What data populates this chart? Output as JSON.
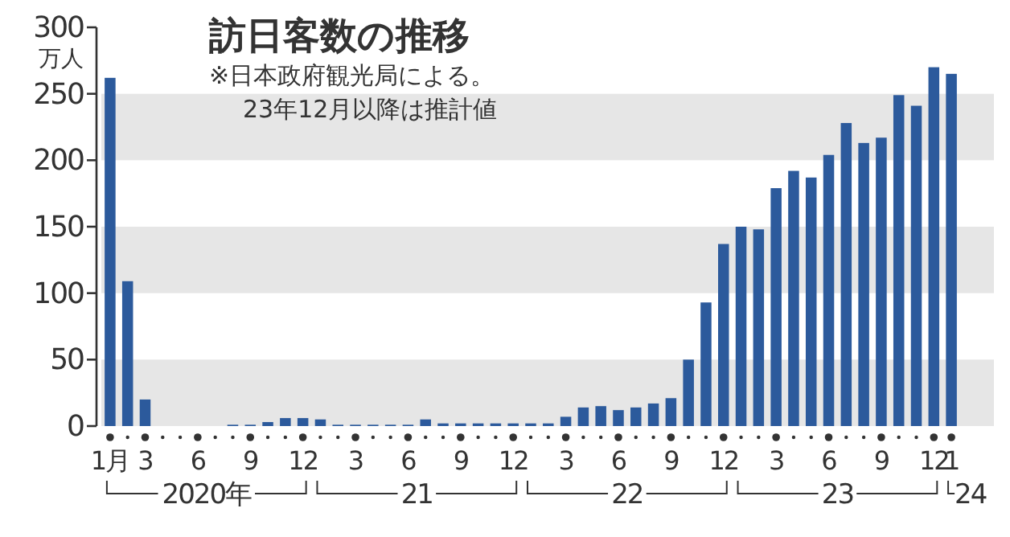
{
  "chart_data": {
    "type": "bar",
    "title": "訪日客数の推移",
    "ylabel": "万人",
    "annotations": [
      "※日本政府観光局による。",
      "23年12月以降は推計値",
      "2020年",
      "21",
      "22",
      "23",
      "24"
    ],
    "categories": [
      "1月",
      null,
      "3",
      null,
      null,
      "6",
      null,
      null,
      "9",
      null,
      null,
      "12",
      null,
      null,
      "3",
      null,
      null,
      "6",
      null,
      null,
      "9",
      null,
      null,
      "12",
      null,
      null,
      "3",
      null,
      null,
      "6",
      null,
      null,
      "9",
      null,
      null,
      "12",
      null,
      null,
      "3",
      null,
      null,
      "6",
      null,
      null,
      "9",
      null,
      null,
      "12",
      "1"
    ],
    "values": [
      262,
      109,
      20,
      0,
      0,
      0,
      0,
      1,
      1,
      3,
      6,
      6,
      5,
      1,
      1,
      1,
      1,
      1,
      5,
      2,
      2,
      2,
      2,
      2,
      2,
      2,
      7,
      14,
      15,
      12,
      14,
      17,
      21,
      50,
      93,
      137,
      150,
      148,
      179,
      192,
      187,
      204,
      228,
      213,
      217,
      249,
      241,
      270,
      265
    ],
    "color": "#2c5a9c",
    "ylim": [
      0,
      300
    ],
    "yticks": [
      0,
      50,
      100,
      150,
      200,
      250,
      300
    ],
    "bands": [
      {
        "axis": "y",
        "from": 0,
        "to": 50,
        "color": "#e6e6e6"
      },
      {
        "axis": "y",
        "from": 100,
        "to": 150,
        "color": "#e6e6e6"
      },
      {
        "axis": "y",
        "from": 200,
        "to": 250,
        "color": "#e6e6e6"
      }
    ]
  }
}
